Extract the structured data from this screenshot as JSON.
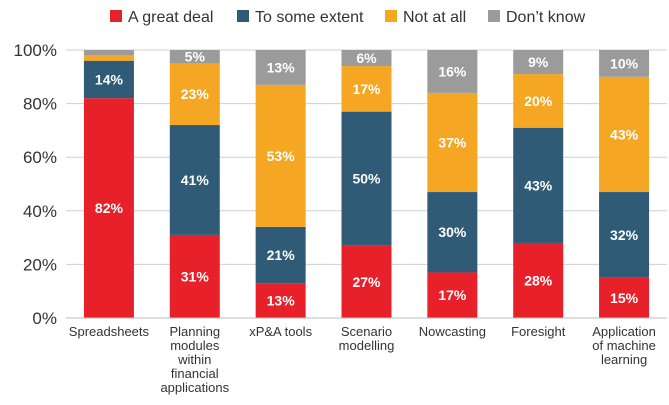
{
  "chart_data": {
    "type": "bar",
    "stacked": true,
    "categories": [
      [
        "Spreadsheets"
      ],
      [
        "Planning",
        "modules",
        "within",
        "financial",
        "applications"
      ],
      [
        "xP&A tools"
      ],
      [
        "Scenario",
        "modelling"
      ],
      [
        "Nowcasting"
      ],
      [
        "Foresight"
      ],
      [
        "Application",
        "of machine",
        "learning"
      ]
    ],
    "series": [
      {
        "name": "A great deal",
        "color": "#e8202a",
        "values": [
          82,
          31,
          13,
          27,
          17,
          28,
          15
        ],
        "labels": [
          "82%",
          "31%",
          "13%",
          "27%",
          "17%",
          "28%",
          "15%"
        ]
      },
      {
        "name": "To some extent",
        "color": "#2f5b77",
        "values": [
          14,
          41,
          21,
          50,
          30,
          43,
          32
        ],
        "labels": [
          "14%",
          "41%",
          "21%",
          "50%",
          "30%",
          "43%",
          "32%"
        ]
      },
      {
        "name": "Not at all",
        "color": "#f5a623",
        "values": [
          2,
          23,
          53,
          17,
          37,
          20,
          43
        ],
        "labels": [
          "",
          "23%",
          "53%",
          "17%",
          "37%",
          "20%",
          "43%"
        ]
      },
      {
        "name": "Don’t know",
        "color": "#9b9b9b",
        "values": [
          2,
          5,
          13,
          6,
          16,
          9,
          10
        ],
        "labels": [
          "",
          "5%",
          "13%",
          "6%",
          "16%",
          "9%",
          "10%"
        ]
      }
    ],
    "y_ticks": [
      "0%",
      "20%",
      "40%",
      "60%",
      "80%",
      "100%"
    ],
    "ylim": [
      0,
      100
    ],
    "grid": true,
    "legend_position": "top"
  }
}
